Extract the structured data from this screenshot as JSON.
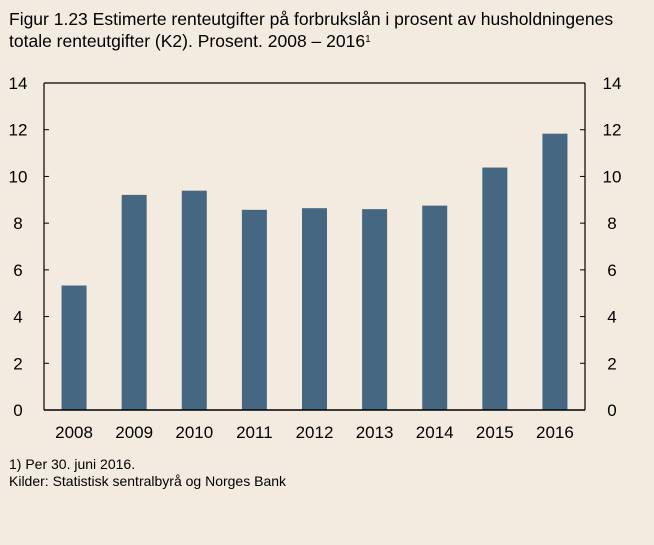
{
  "chart_data": {
    "type": "bar",
    "title": "Figur 1.23 Estimerte renteutgifter på forbrukslån i prosent av husholdningenes totale renteutgifter (K2). Prosent. 2008 – 2016",
    "title_footnote_marker": "1",
    "categories": [
      "2008",
      "2009",
      "2010",
      "2011",
      "2012",
      "2013",
      "2014",
      "2015",
      "2016"
    ],
    "values": [
      5.33,
      9.21,
      9.39,
      8.57,
      8.64,
      8.6,
      8.75,
      10.38,
      11.83
    ],
    "xlabel": "",
    "ylabel": "",
    "ylim": [
      0,
      14
    ],
    "yticks": [
      0,
      2,
      4,
      6,
      8,
      10,
      12,
      14
    ],
    "secondary_yaxis": true,
    "grid": false,
    "bar_color": "#456781",
    "background_color": "#f3ebdf"
  },
  "notes": {
    "footnote": "1) Per 30. juni 2016.",
    "source": "Kilder: Statistisk sentralbyrå og Norges Bank"
  }
}
